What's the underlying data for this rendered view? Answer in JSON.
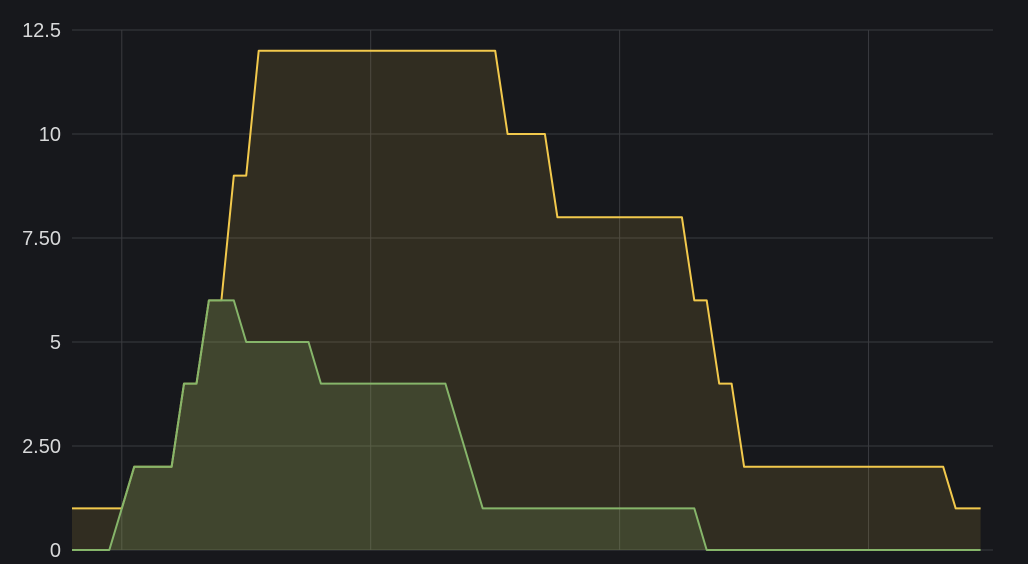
{
  "colors": {
    "background": "#17181c",
    "grid": "#3a3b3f",
    "series_yellow": "#f2c94c",
    "series_green": "#86b56a"
  },
  "chart_data": {
    "type": "area",
    "title": "",
    "xlabel": "",
    "ylabel": "",
    "ylim": [
      0,
      12.5
    ],
    "xlim": [
      0,
      74
    ],
    "yticks": [
      0,
      2.5,
      5,
      7.5,
      10,
      12.5
    ],
    "ytick_labels": [
      "0",
      "2.50",
      "5",
      "7.50",
      "10",
      "12.5"
    ],
    "x_gridlines": [
      4,
      24,
      44,
      64
    ],
    "grid": true,
    "legend": "none",
    "series": [
      {
        "color": "#f2c94c",
        "points": [
          [
            0,
            1
          ],
          [
            4,
            1
          ],
          [
            5,
            2
          ],
          [
            8,
            2
          ],
          [
            9,
            4
          ],
          [
            10,
            4
          ],
          [
            11,
            6
          ],
          [
            12,
            6
          ],
          [
            13,
            9
          ],
          [
            14,
            9
          ],
          [
            15,
            12
          ],
          [
            34,
            12
          ],
          [
            35,
            10
          ],
          [
            38,
            10
          ],
          [
            39,
            8
          ],
          [
            49,
            8
          ],
          [
            50,
            6
          ],
          [
            51,
            6
          ],
          [
            52,
            4
          ],
          [
            53,
            4
          ],
          [
            54,
            2
          ],
          [
            70,
            2
          ],
          [
            71,
            1
          ],
          [
            73,
            1
          ]
        ]
      },
      {
        "color": "#86b56a",
        "points": [
          [
            0,
            0
          ],
          [
            3,
            0
          ],
          [
            4,
            1
          ],
          [
            5,
            2
          ],
          [
            8,
            2
          ],
          [
            9,
            4
          ],
          [
            10,
            4
          ],
          [
            11,
            6
          ],
          [
            13,
            6
          ],
          [
            14,
            5
          ],
          [
            19,
            5
          ],
          [
            20,
            4
          ],
          [
            30,
            4
          ],
          [
            33,
            1
          ],
          [
            50,
            1
          ],
          [
            51,
            0
          ],
          [
            73,
            0
          ]
        ]
      }
    ]
  }
}
